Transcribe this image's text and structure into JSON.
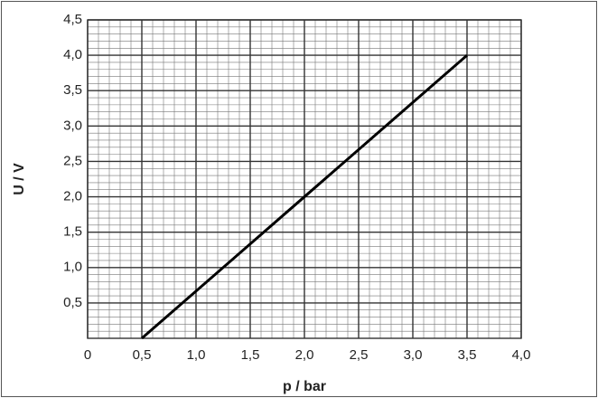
{
  "chart_data": {
    "type": "line",
    "xlabel": "p / bar",
    "ylabel": "U / V",
    "x": [
      0.5,
      2.0,
      3.5
    ],
    "series": [
      {
        "color": "#000000",
        "values": [
          0,
          2.0,
          4.0
        ]
      }
    ],
    "xlim": [
      0,
      4.0
    ],
    "ylim": [
      0,
      4.5
    ],
    "xticks": [
      0,
      {
        "value": 0.5,
        "label": "0,5"
      },
      {
        "value": 1.0,
        "label": "1,0"
      },
      {
        "value": 1.5,
        "label": "1,5"
      },
      {
        "value": 2.0,
        "label": "2,0"
      },
      {
        "value": 2.5,
        "label": "2,5"
      },
      {
        "value": 3.0,
        "label": "3,0"
      },
      {
        "value": 3.5,
        "label": "3,5"
      },
      {
        "value": 4.0,
        "label": "4,0"
      }
    ],
    "yticks": [
      {
        "value": 0.5,
        "label": "0,5"
      },
      {
        "value": 1.0,
        "label": "1,0"
      },
      {
        "value": 1.5,
        "label": "1,5"
      },
      {
        "value": 2.0,
        "label": "2,0"
      },
      {
        "value": 2.5,
        "label": "2,5"
      },
      {
        "value": 3.0,
        "label": "3,0"
      },
      {
        "value": 3.5,
        "label": "3,5"
      },
      {
        "value": 4.0,
        "label": "4,0"
      },
      {
        "value": 4.5,
        "label": "4,5"
      }
    ],
    "grid": true,
    "minor_grid_divisions": 5
  }
}
